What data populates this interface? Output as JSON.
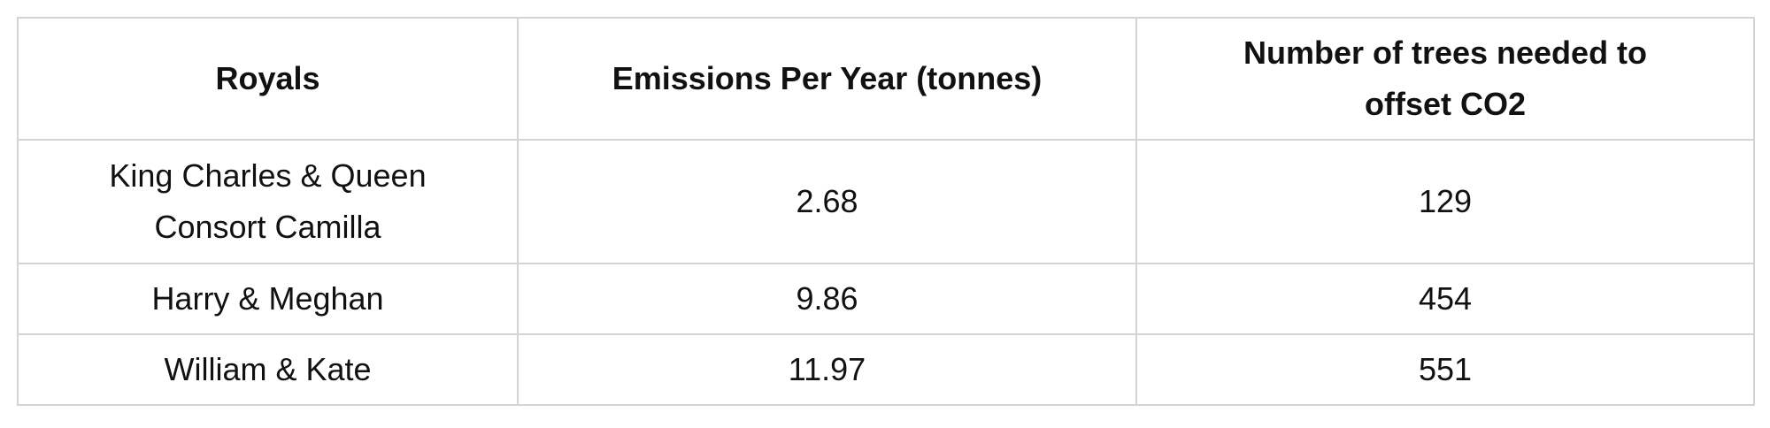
{
  "table": {
    "header": [
      "Royals",
      "Emissions Per Year (tonnes)",
      "Number of trees needed to offset CO2"
    ],
    "rows": [
      [
        "King Charles & Queen Consort Camilla",
        2.68,
        129
      ],
      [
        "Harry & Meghan",
        9.86,
        454
      ],
      [
        "William & Kate",
        11.97,
        551
      ]
    ]
  }
}
